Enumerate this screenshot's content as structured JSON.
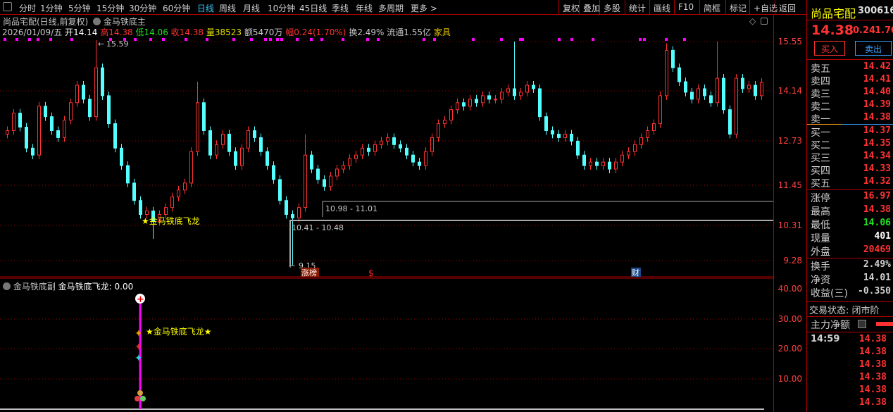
{
  "toolbar": {
    "periods": [
      "分时",
      "1分钟",
      "5分钟",
      "15分钟",
      "30分钟",
      "60分钟",
      "日线",
      "周线",
      "月线",
      "10分钟",
      "45日线",
      "季线",
      "年线",
      "多周期",
      "更多 >"
    ],
    "active_period": "日线",
    "actions": [
      "复权",
      "叠加",
      "多股",
      "统计",
      "画线",
      "F10",
      "简框",
      "标记",
      "+自选",
      "返回"
    ]
  },
  "main": {
    "title": "尚品宅配(日线,前复权)",
    "indicator": "金马铁底主",
    "quote": {
      "date": "2026/01/09/五",
      "open_label": "开",
      "open": "14.14",
      "high_label": "高",
      "high": "14.38",
      "low_label": "低",
      "low": "14.06",
      "close_label": "收",
      "close": "14.38",
      "vol_label": "量",
      "vol": "38523",
      "amount": "额5470万",
      "chg_label": "幅",
      "chg": "0.24(1.70%)",
      "turnover": "换2.49%",
      "float": "流通1.55亿",
      "sector": "家具"
    },
    "y_ticks": [
      "15.55",
      "14.14",
      "12.73",
      "11.45",
      "10.31",
      "9.28"
    ],
    "annotations": {
      "high_mark": "15.59",
      "low_mark": "9.15",
      "signal": "★金马铁底飞龙",
      "range1": "10.98 - 11.01",
      "range2": "10.41 - 10.48",
      "badge1": "涨榜",
      "badge2": "$",
      "badge3": "财"
    }
  },
  "chart_data": [
    {
      "type": "candlestick",
      "ylim": [
        9.0,
        15.7
      ],
      "colors": {
        "up": "#ff3232",
        "down": "#54ffff"
      },
      "close": [
        13.0,
        13.5,
        13.1,
        12.5,
        12.3,
        13.7,
        13.4,
        13.0,
        12.8,
        13.3,
        13.8,
        14.3,
        13.9,
        13.4,
        14.8,
        14.0,
        13.2,
        12.5,
        12.0,
        11.5,
        11.0,
        10.6,
        10.7,
        10.4,
        10.6,
        10.8,
        11.1,
        11.3,
        11.5,
        12.4,
        13.8,
        13.0,
        12.3,
        12.6,
        12.9,
        12.4,
        12.0,
        12.5,
        13.0,
        12.8,
        12.4,
        12.0,
        11.6,
        11.0,
        10.6,
        10.5,
        10.8,
        12.3,
        11.9,
        11.6,
        11.4,
        11.7,
        11.9,
        12.0,
        12.2,
        12.3,
        12.5,
        12.4,
        12.6,
        12.7,
        12.8,
        12.6,
        12.5,
        12.3,
        12.1,
        12.0,
        12.4,
        12.8,
        13.2,
        13.3,
        13.6,
        13.8,
        13.7,
        13.9,
        13.8,
        14.0,
        13.9,
        13.9,
        14.1,
        14.2,
        14.0,
        14.1,
        14.3,
        14.2,
        13.4,
        13.0,
        12.9,
        12.8,
        12.9,
        12.7,
        12.3,
        12.0,
        12.1,
        12.0,
        12.1,
        11.9,
        12.1,
        12.3,
        12.4,
        12.6,
        12.8,
        13.0,
        13.2,
        14.0,
        15.3,
        14.8,
        14.4,
        14.1,
        13.9,
        14.2,
        14.0,
        13.8,
        14.5,
        13.6,
        12.9,
        14.5,
        14.2,
        14.3,
        14.0,
        14.38
      ],
      "extremes": [
        {
          "index": 14,
          "high": 15.59
        },
        {
          "index": 23,
          "low": 9.9
        },
        {
          "index": 30,
          "high": 14.4
        },
        {
          "index": 45,
          "low": 9.15
        },
        {
          "index": 47,
          "high": 12.9
        },
        {
          "index": 80,
          "high": 15.55
        },
        {
          "index": 104,
          "high": 15.5
        },
        {
          "index": 112,
          "high": 15.55
        }
      ]
    },
    {
      "type": "indicator",
      "title": "金马铁底副",
      "series_label": "金马铁底飞龙: 0.00",
      "signal_label": "★金马铁底飞龙★",
      "ylim": [
        0,
        43
      ],
      "y_ticks": [
        "40.00",
        "30.00",
        "20.00",
        "10.00"
      ]
    }
  ],
  "side": {
    "name": "尚品宅配",
    "code": "300616",
    "price": "14.38",
    "change": "0.24",
    "pct": "1.70",
    "buy_btn": "买入",
    "sell_btn": "卖出",
    "asks": [
      {
        "k": "卖五",
        "v": "14.42"
      },
      {
        "k": "卖四",
        "v": "14.41"
      },
      {
        "k": "卖三",
        "v": "14.40"
      },
      {
        "k": "卖二",
        "v": "14.39"
      },
      {
        "k": "卖一",
        "v": "14.38"
      }
    ],
    "bids": [
      {
        "k": "买一",
        "v": "14.37"
      },
      {
        "k": "买二",
        "v": "14.35"
      },
      {
        "k": "买三",
        "v": "14.34"
      },
      {
        "k": "买四",
        "v": "14.33"
      },
      {
        "k": "买五",
        "v": "14.32"
      }
    ],
    "stats": [
      {
        "k": "涨停",
        "v": "16.97",
        "c": "#ff3232"
      },
      {
        "k": "最高",
        "v": "14.38",
        "c": "#ff3232"
      },
      {
        "k": "最低",
        "v": "14.06",
        "c": "#20e020"
      },
      {
        "k": "现量",
        "v": "401",
        "c": "#ffffff"
      },
      {
        "k": "外盘",
        "v": "20469",
        "c": "#ff3232"
      }
    ],
    "fin": [
      {
        "k": "换手",
        "v": "2.49%"
      },
      {
        "k": "净资",
        "v": "14.01"
      },
      {
        "k": "收益(三)",
        "v": "-0.350"
      }
    ],
    "trade_status": "交易状态: 闭市阶",
    "main_flow": "主力净额",
    "ticks": [
      {
        "t": "14:59",
        "v": "14.38"
      },
      {
        "t": "",
        "v": "14.38"
      },
      {
        "t": "",
        "v": "14.38"
      },
      {
        "t": "",
        "v": "14.38"
      },
      {
        "t": "",
        "v": "14.38"
      },
      {
        "t": "",
        "v": "14.38"
      }
    ]
  }
}
